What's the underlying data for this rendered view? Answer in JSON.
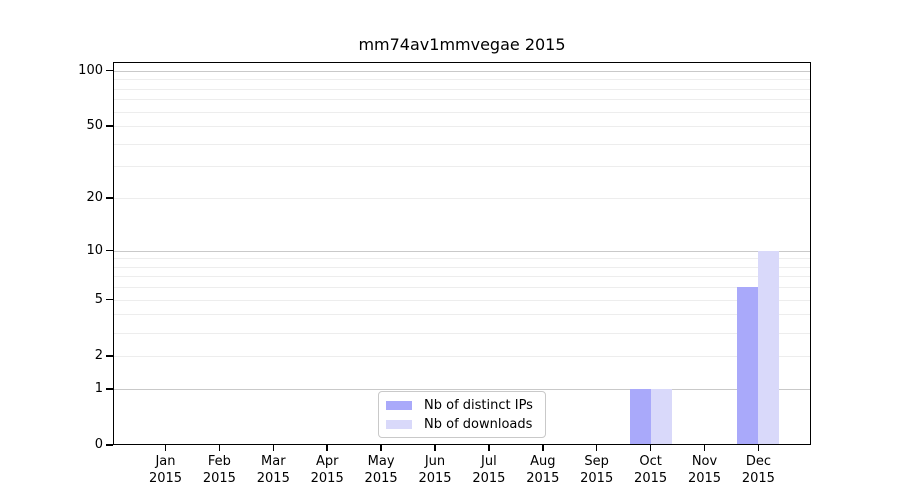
{
  "title": "mm74av1mmvegae 2015",
  "colors": {
    "distinct_ips": "#a9a9fa",
    "downloads": "#d9d9fa",
    "grid_major": "#c9c9c9",
    "grid_minor": "#ededed",
    "spine": "#000000",
    "legend_border": "#c9c9c9"
  },
  "legend": {
    "items": [
      {
        "label": "Nb of distinct IPs",
        "color_key": "distinct_ips"
      },
      {
        "label": "Nb of downloads",
        "color_key": "downloads"
      }
    ]
  },
  "y_axis": {
    "tick_values": [
      100,
      50,
      20,
      10,
      5,
      2,
      1,
      0
    ],
    "tick_labels": [
      "100",
      "50",
      "20",
      "10",
      "5",
      "2",
      "1",
      "0"
    ],
    "grid_major_values": [
      1,
      10,
      100
    ],
    "grid_minor_values": [
      2,
      3,
      4,
      5,
      6,
      7,
      8,
      9,
      20,
      30,
      40,
      50,
      60,
      70,
      80,
      90
    ]
  },
  "x_axis": {
    "categories": [
      {
        "month": "Jan",
        "year": "2015"
      },
      {
        "month": "Feb",
        "year": "2015"
      },
      {
        "month": "Mar",
        "year": "2015"
      },
      {
        "month": "Apr",
        "year": "2015"
      },
      {
        "month": "May",
        "year": "2015"
      },
      {
        "month": "Jun",
        "year": "2015"
      },
      {
        "month": "Jul",
        "year": "2015"
      },
      {
        "month": "Aug",
        "year": "2015"
      },
      {
        "month": "Sep",
        "year": "2015"
      },
      {
        "month": "Oct",
        "year": "2015"
      },
      {
        "month": "Nov",
        "year": "2015"
      },
      {
        "month": "Dec",
        "year": "2015"
      }
    ]
  },
  "chart_data": {
    "type": "bar",
    "title": "mm74av1mmvegae 2015",
    "categories": [
      "Jan 2015",
      "Feb 2015",
      "Mar 2015",
      "Apr 2015",
      "May 2015",
      "Jun 2015",
      "Jul 2015",
      "Aug 2015",
      "Sep 2015",
      "Oct 2015",
      "Nov 2015",
      "Dec 2015"
    ],
    "series": [
      {
        "name": "Nb of distinct IPs",
        "values": [
          0,
          0,
          0,
          0,
          0,
          0,
          0,
          0,
          0,
          1,
          0,
          6
        ]
      },
      {
        "name": "Nb of downloads",
        "values": [
          0,
          0,
          0,
          0,
          0,
          0,
          0,
          0,
          0,
          1,
          0,
          10
        ]
      }
    ],
    "xlabel": "",
    "ylabel": "",
    "yscale": "log1p",
    "ylim": [
      0,
      111
    ],
    "yticks": [
      0,
      1,
      2,
      5,
      10,
      20,
      50,
      100
    ],
    "grid": "horizontal",
    "legend_position": "lower center"
  }
}
